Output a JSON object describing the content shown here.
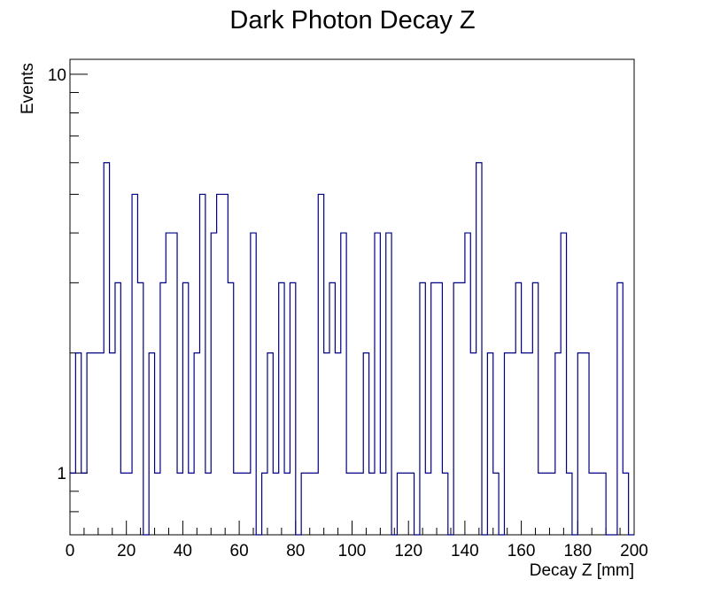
{
  "chart_data": {
    "type": "bar",
    "title": "Dark Photon Decay Z",
    "xlabel": "Decay Z [mm]",
    "ylabel": "Events",
    "xlim": [
      0,
      200
    ],
    "ylim": [
      0.7,
      10.9
    ],
    "yscale": "log",
    "bin_width": 2,
    "x_ticks": [
      0,
      20,
      40,
      60,
      80,
      100,
      120,
      140,
      160,
      180,
      200
    ],
    "y_ticks": [
      1,
      10
    ],
    "line_color": "#000080",
    "values": [
      1,
      2,
      1,
      2,
      2,
      2,
      6,
      2,
      3,
      1,
      1,
      5,
      3,
      0,
      2,
      1,
      3,
      4,
      4,
      1,
      3,
      1,
      2,
      5,
      1,
      4,
      5,
      5,
      3,
      1,
      1,
      1,
      4,
      0,
      1,
      2,
      1,
      3,
      1,
      3,
      0,
      1,
      1,
      1,
      5,
      2,
      3,
      2,
      4,
      1,
      1,
      1,
      2,
      1,
      4,
      1,
      4,
      0,
      1,
      1,
      1,
      0,
      3,
      1,
      3,
      3,
      1,
      0,
      3,
      3,
      4,
      2,
      6,
      0,
      2,
      1,
      0,
      2,
      2,
      3,
      2,
      2,
      3,
      1,
      1,
      1,
      2,
      4,
      1,
      0,
      2,
      2,
      1,
      1,
      1,
      0,
      0,
      3,
      1,
      0
    ]
  }
}
